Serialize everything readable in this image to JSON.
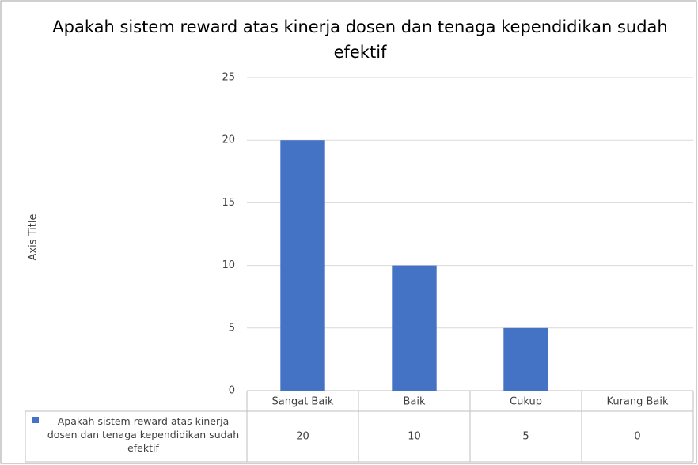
{
  "chart_data": {
    "type": "bar",
    "title": "Apakah sistem reward atas kinerja dosen dan tenaga kependidikan sudah efektif",
    "y_axis_label": "Axis Title",
    "categories": [
      "Sangat Baik",
      "Baik",
      "Cukup",
      "Kurang Baik"
    ],
    "series": [
      {
        "name": "Apakah sistem reward atas kinerja dosen dan tenaga kependidikan sudah efektif",
        "color": "#4472c4",
        "values": [
          20,
          10,
          5,
          0
        ]
      }
    ],
    "ylim": [
      0,
      25
    ],
    "yticks": [
      0,
      5,
      10,
      15,
      20,
      25
    ],
    "grid": true,
    "data_table": true
  }
}
